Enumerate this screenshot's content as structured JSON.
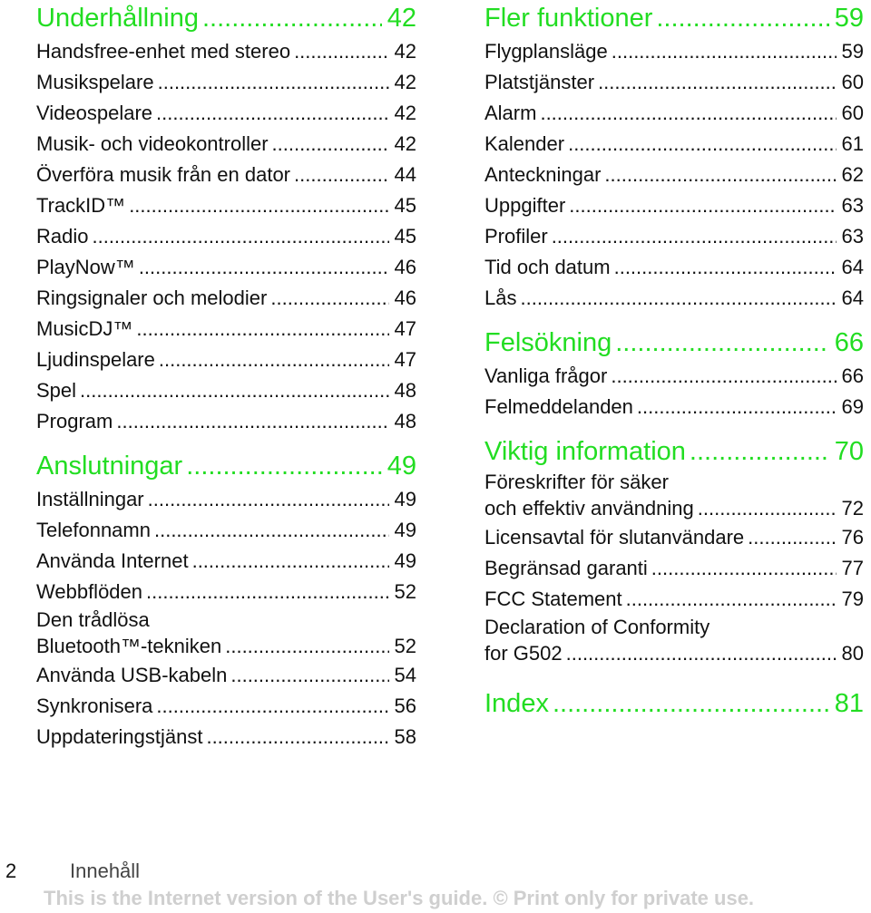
{
  "colors": {
    "heading": "#22dd22",
    "text": "#111111",
    "watermark": "#cfcfcf"
  },
  "left": {
    "sections": [
      {
        "title": "Underhållning",
        "page": "42",
        "items": [
          {
            "label": "Handsfree-enhet med stereo",
            "page": "42"
          },
          {
            "label": "Musikspelare",
            "page": "42"
          },
          {
            "label": "Videospelare",
            "page": "42"
          },
          {
            "label": "Musik- och videokontroller",
            "page": "42"
          },
          {
            "label": "Överföra musik från en dator",
            "page": "44"
          },
          {
            "label": "TrackID™",
            "page": "45"
          },
          {
            "label": "Radio",
            "page": "45"
          },
          {
            "label": "PlayNow™",
            "page": "46"
          },
          {
            "label": "Ringsignaler och melodier",
            "page": "46"
          },
          {
            "label": "MusicDJ™",
            "page": "47"
          },
          {
            "label": "Ljudinspelare",
            "page": "47"
          },
          {
            "label": "Spel",
            "page": "48"
          },
          {
            "label": "Program",
            "page": "48"
          }
        ]
      },
      {
        "title": "Anslutningar",
        "page": "49",
        "items": [
          {
            "label": "Inställningar",
            "page": "49"
          },
          {
            "label": "Telefonnamn",
            "page": "49"
          },
          {
            "label": "Använda Internet",
            "page": "49"
          },
          {
            "label": "Webbflöden",
            "page": "52"
          },
          {
            "label": "Den trådlösa",
            "label2": "Bluetooth™-tekniken",
            "page": "52"
          },
          {
            "label": "Använda USB-kabeln",
            "page": "54"
          },
          {
            "label": "Synkronisera",
            "page": "56"
          },
          {
            "label": "Uppdateringstjänst",
            "page": "58"
          }
        ]
      }
    ]
  },
  "right": {
    "sections": [
      {
        "title": "Fler funktioner",
        "page": "59",
        "items": [
          {
            "label": "Flygplansläge",
            "page": "59"
          },
          {
            "label": "Platstjänster",
            "page": "60"
          },
          {
            "label": "Alarm",
            "page": "60"
          },
          {
            "label": "Kalender",
            "page": "61"
          },
          {
            "label": "Anteckningar",
            "page": "62"
          },
          {
            "label": "Uppgifter",
            "page": "63"
          },
          {
            "label": "Profiler",
            "page": "63"
          },
          {
            "label": "Tid och datum",
            "page": "64"
          },
          {
            "label": "Lås",
            "page": "64"
          }
        ]
      },
      {
        "title": "Felsökning",
        "page": "66",
        "items": [
          {
            "label": "Vanliga frågor",
            "page": "66"
          },
          {
            "label": "Felmeddelanden",
            "page": "69"
          }
        ]
      },
      {
        "title": "Viktig information",
        "page": "70",
        "items": [
          {
            "label": "Föreskrifter för säker",
            "label2": "och effektiv användning",
            "page": "72"
          },
          {
            "label": "Licensavtal för slutanvändare",
            "page": "76"
          },
          {
            "label": "Begränsad garanti",
            "page": "77"
          },
          {
            "label": "FCC Statement",
            "page": "79"
          },
          {
            "label": "Declaration of Conformity",
            "label2": "for G502",
            "page": "80"
          }
        ]
      },
      {
        "title": "Index",
        "page": "81",
        "items": []
      }
    ]
  },
  "footer": {
    "page_number": "2",
    "section": "Innehåll",
    "note": "This is the Internet version of the User's guide. © Print only for private use."
  }
}
